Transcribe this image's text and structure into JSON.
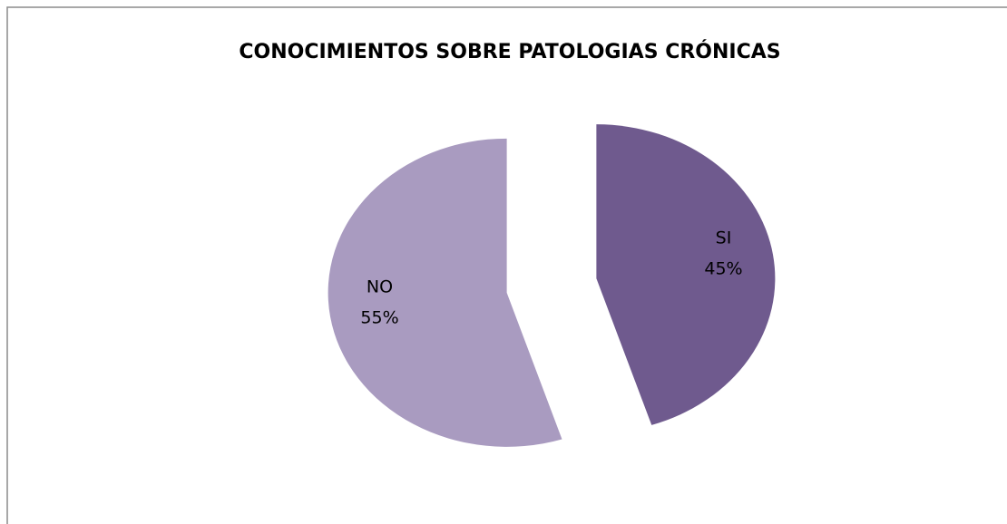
{
  "chart_data": {
    "type": "pie",
    "title": "CONOCIMIENTOS  SOBRE PATOLOGIAS  CRÓNICAS",
    "categories": [
      "SI",
      "NO"
    ],
    "values": [
      45,
      55
    ],
    "value_labels": [
      "45%",
      "55%"
    ],
    "colors": [
      "#6f5a8e",
      "#a99bc0"
    ]
  }
}
